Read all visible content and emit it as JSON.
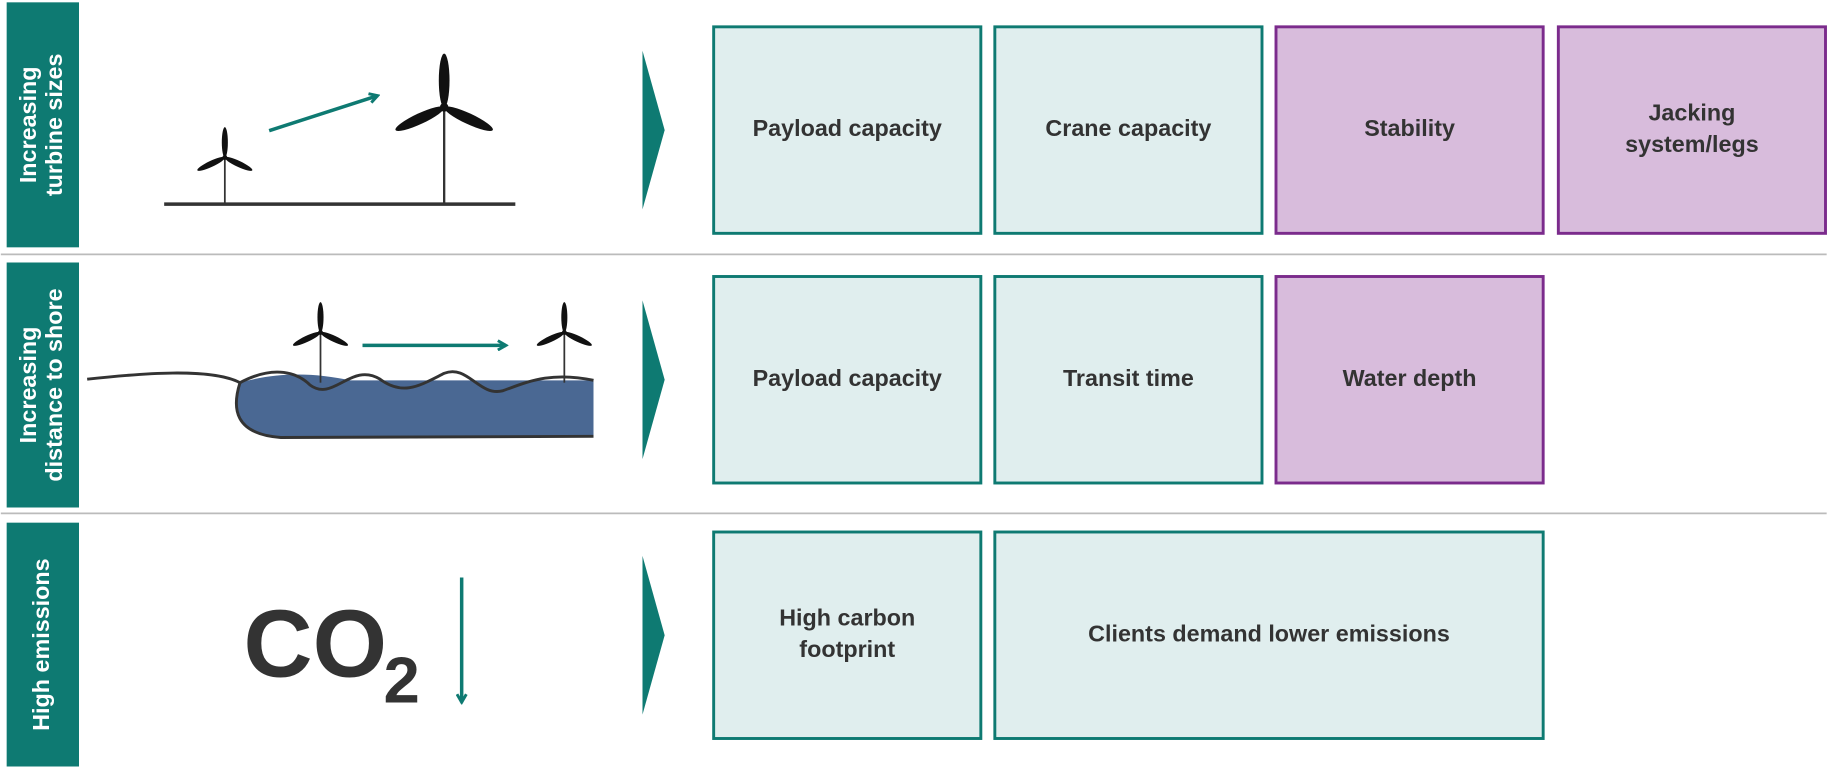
{
  "rows": [
    {
      "label": [
        "Increasing",
        "turbine sizes"
      ],
      "boxes": [
        {
          "text": [
            "Payload capacity"
          ],
          "style": "teal"
        },
        {
          "text": [
            "Crane capacity"
          ],
          "style": "teal"
        },
        {
          "text": [
            "Stability"
          ],
          "style": "purple"
        },
        {
          "text": [
            "Jacking",
            "system/legs"
          ],
          "style": "purple"
        }
      ]
    },
    {
      "label": [
        "Increasing",
        "distance to shore"
      ],
      "boxes": [
        {
          "text": [
            "Payload capacity"
          ],
          "style": "teal"
        },
        {
          "text": [
            "Transit time"
          ],
          "style": "teal"
        },
        {
          "text": [
            "Water depth"
          ],
          "style": "purple"
        }
      ]
    },
    {
      "label": [
        "High emissions"
      ],
      "boxes": [
        {
          "text": [
            "High carbon",
            "footprint"
          ],
          "style": "teal"
        },
        {
          "text": [
            "Clients demand lower emissions"
          ],
          "style": "teal",
          "span": 2
        }
      ]
    }
  ],
  "co2": {
    "text": "CO",
    "subscript": "2"
  }
}
